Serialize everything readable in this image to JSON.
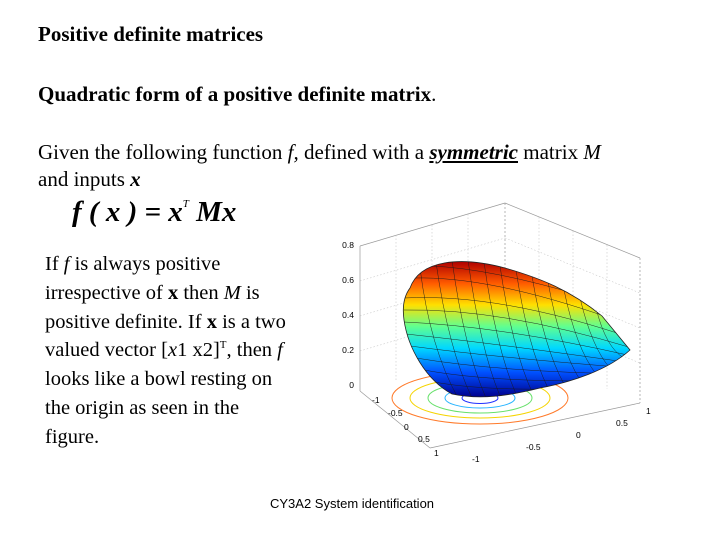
{
  "title": "Positive definite matrices",
  "subtitle_main": "Quadratic form of a positive definite matrix",
  "subtitle_period": ".",
  "given": {
    "t1": "Given the following function ",
    "f": "f,",
    "t2": " defined with a ",
    "sym": "symmetric",
    "t3": " matrix ",
    "M": "M",
    "t4": "and inputs ",
    "x": "x"
  },
  "formula": {
    "lhs": "f ( x ) = x",
    "sup": "T",
    "rhs": " Mx"
  },
  "paragraph": {
    "p1": "If ",
    "f1": "f",
    "p2": " is always positive irrespective of ",
    "x1": "x",
    "p3": " then ",
    "M": "M",
    "p4": " is positive definite. If ",
    "x2": "x",
    "p5": " is a two valued vector [",
    "x3": "x",
    "p6": "1 x2]",
    "sup": "T",
    "p7": ", then ",
    "f2": "f",
    "p8": "   looks like a bowl resting on the origin as seen in the figure."
  },
  "figure": {
    "z_ticks": [
      "0.8",
      "0.6",
      "0.4",
      "0.2",
      "0"
    ],
    "x_ticks": [
      "-1",
      "-0.5",
      "0",
      "0.5",
      "1"
    ],
    "y_ticks": [
      "-1",
      "-0.5",
      "0",
      "0.5",
      "1"
    ]
  },
  "footer": "CY3A2  System identification"
}
